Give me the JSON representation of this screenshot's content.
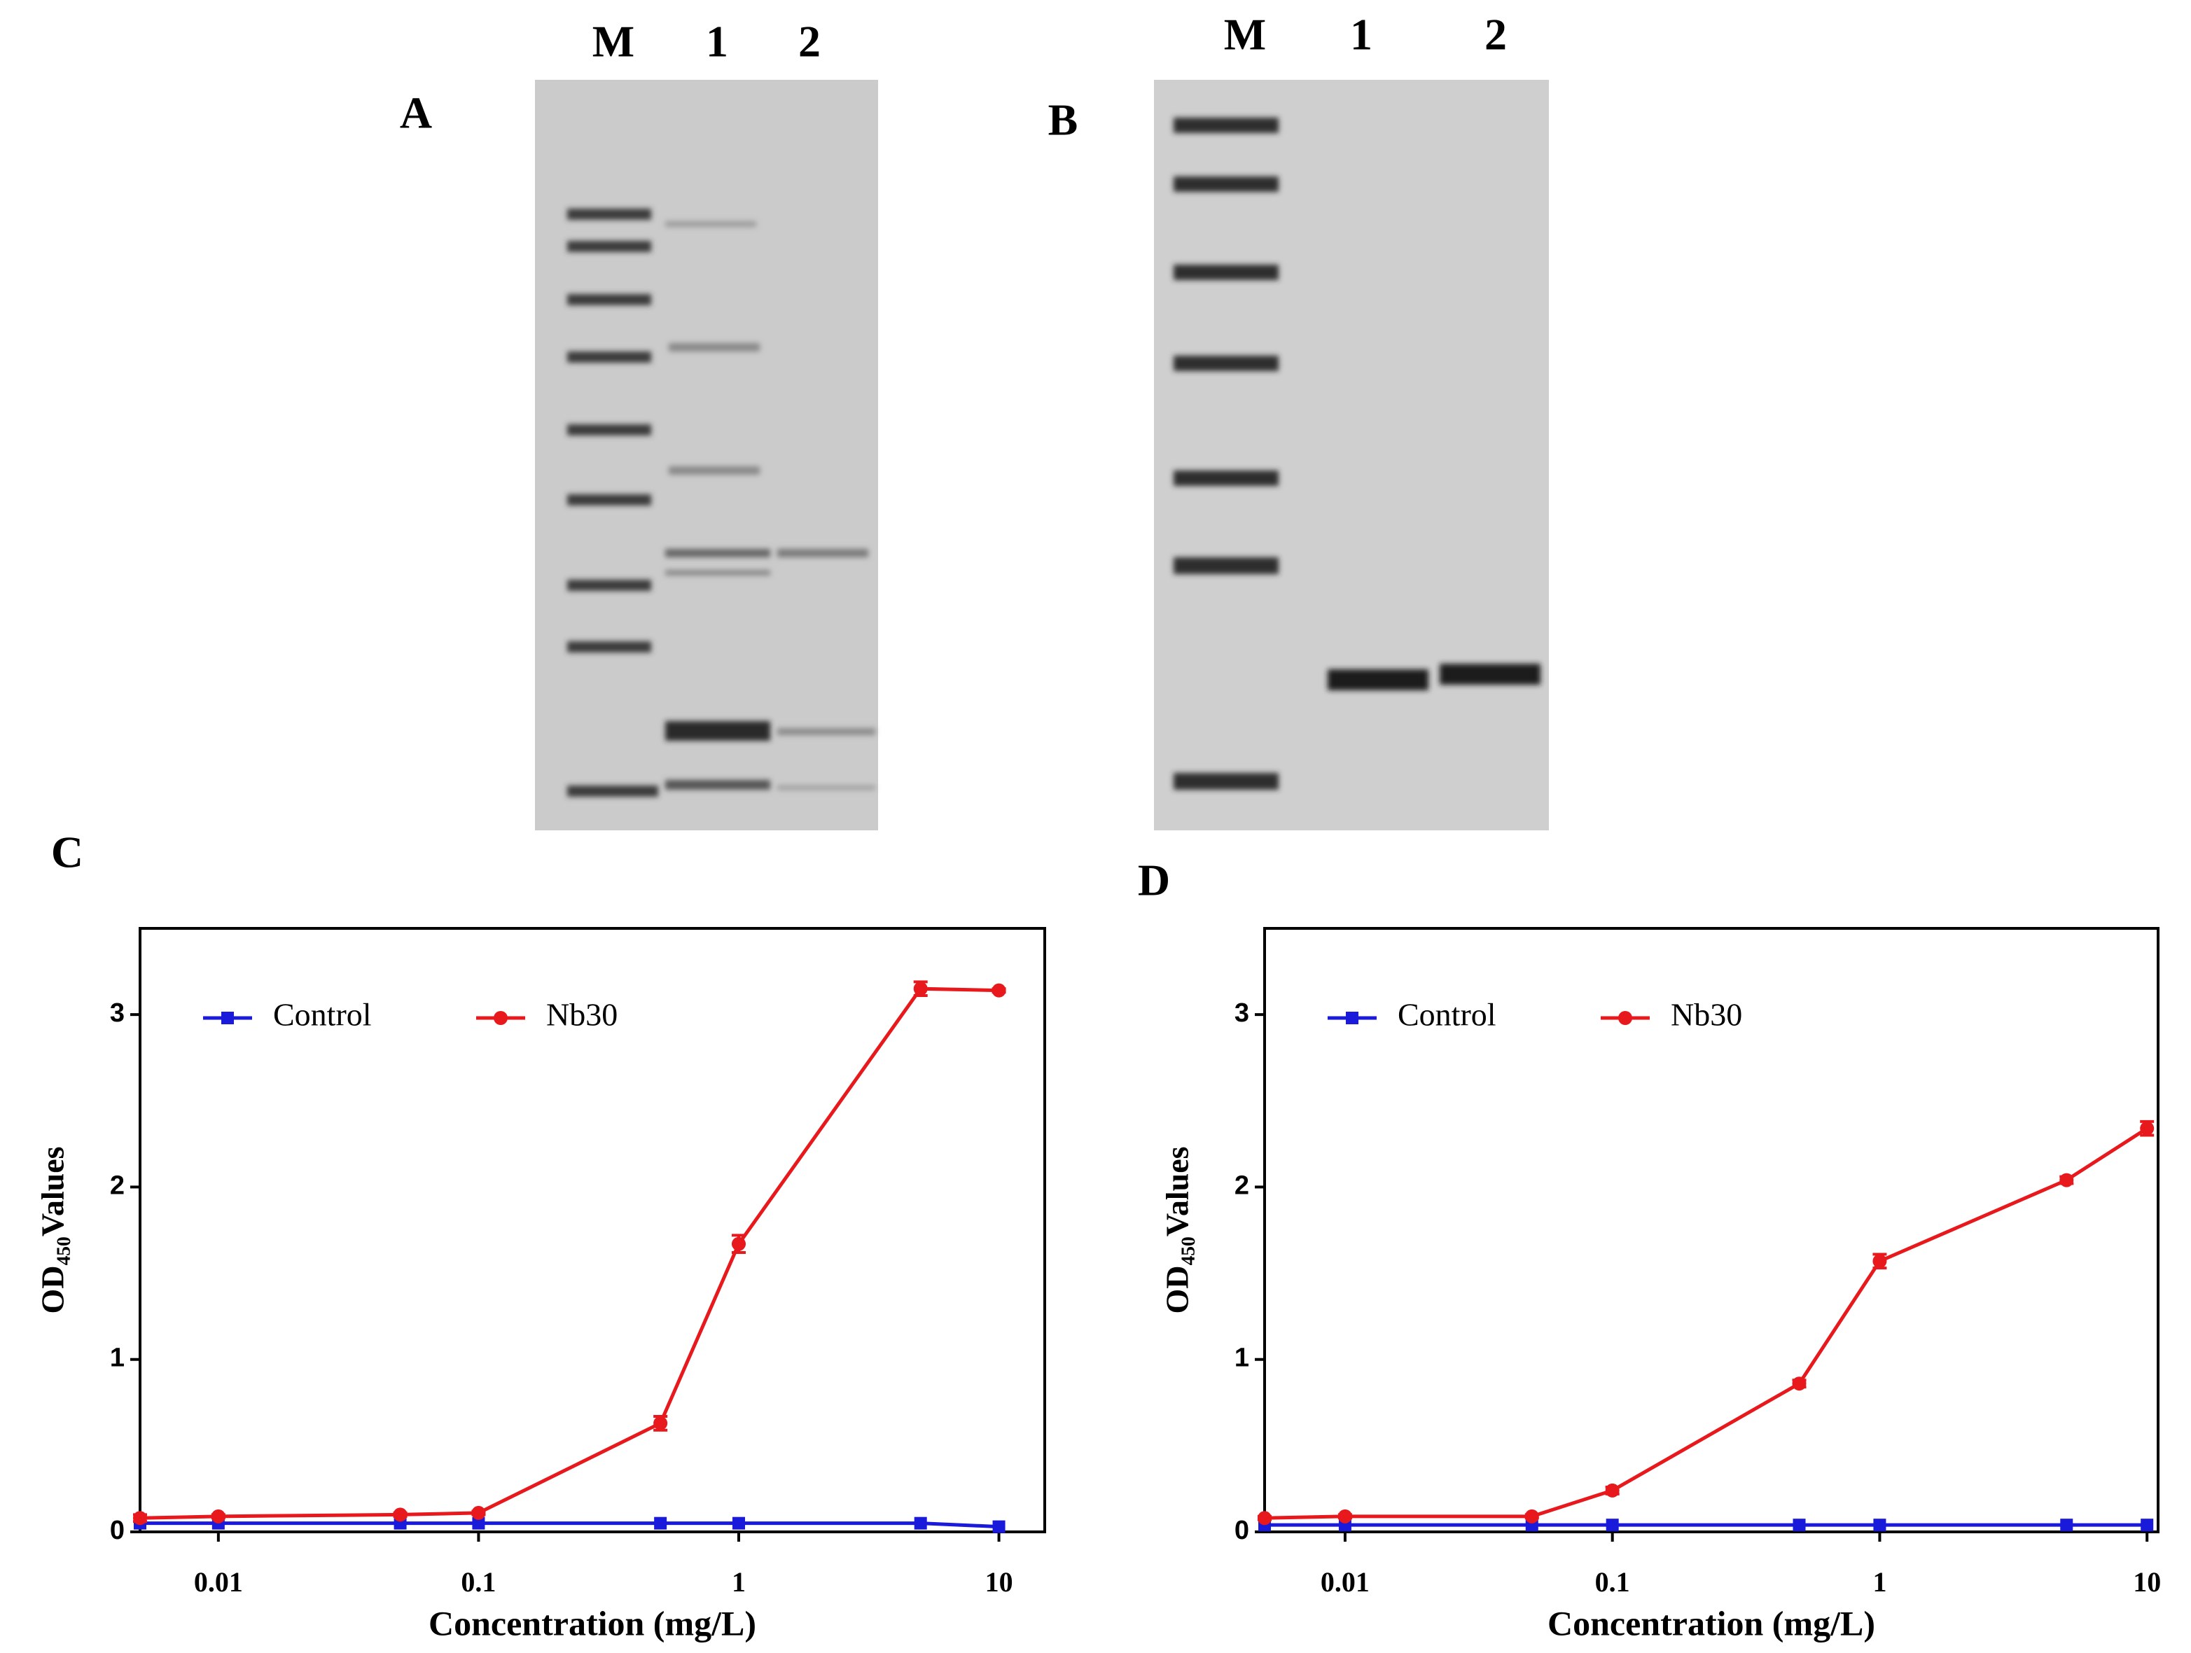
{
  "gels": [
    {
      "label": "A",
      "lanes": [
        "M",
        "1",
        "2"
      ]
    },
    {
      "label": "B",
      "lanes": [
        "M",
        "1",
        "2"
      ]
    }
  ],
  "chart_data": [
    {
      "type": "line",
      "title": "C",
      "x_label": "Concentration (mg/L)",
      "y_label": "OD₄₅₀Values",
      "x": [
        0.005,
        0.01,
        0.05,
        0.1,
        0.5,
        1,
        5,
        10
      ],
      "xscale": "log",
      "xlim": [
        0.005,
        15
      ],
      "xticks": [
        0.01,
        0.1,
        1,
        10
      ],
      "ylim": [
        0,
        3.5
      ],
      "yticks": [
        0,
        1,
        2,
        3
      ],
      "legend": "upper left",
      "series": [
        {
          "name": "Control",
          "color": "#1a1adb",
          "marker": "square",
          "values": [
            0.05,
            0.05,
            0.05,
            0.05,
            0.05,
            0.05,
            0.05,
            0.03
          ]
        },
        {
          "name": "Nb30",
          "color": "#e8191d",
          "marker": "circle",
          "values": [
            0.08,
            0.09,
            0.1,
            0.11,
            0.63,
            1.67,
            3.15,
            3.14
          ],
          "errors": [
            0.02,
            0.01,
            0.01,
            0.01,
            0.04,
            0.05,
            0.04,
            0.01
          ]
        }
      ]
    },
    {
      "type": "line",
      "title": "D",
      "x_label": "Concentration (mg/L)",
      "y_label": "OD₄₅₀Values",
      "x": [
        0.005,
        0.01,
        0.05,
        0.1,
        0.5,
        1,
        5,
        10
      ],
      "xscale": "log",
      "xlim": [
        0.005,
        11
      ],
      "xticks": [
        0.01,
        0.1,
        1,
        10
      ],
      "ylim": [
        0,
        3.5
      ],
      "yticks": [
        0,
        1,
        2,
        3
      ],
      "legend": "upper left",
      "series": [
        {
          "name": "Control",
          "color": "#1a1adb",
          "marker": "square",
          "values": [
            0.04,
            0.04,
            0.04,
            0.04,
            0.04,
            0.04,
            0.04,
            0.04
          ]
        },
        {
          "name": "Nb30",
          "color": "#e8191d",
          "marker": "circle",
          "values": [
            0.08,
            0.09,
            0.09,
            0.24,
            0.86,
            1.57,
            2.04,
            2.34
          ],
          "errors": [
            0.01,
            0.01,
            0.01,
            0.02,
            0.02,
            0.04,
            0.02,
            0.04
          ]
        }
      ]
    }
  ]
}
